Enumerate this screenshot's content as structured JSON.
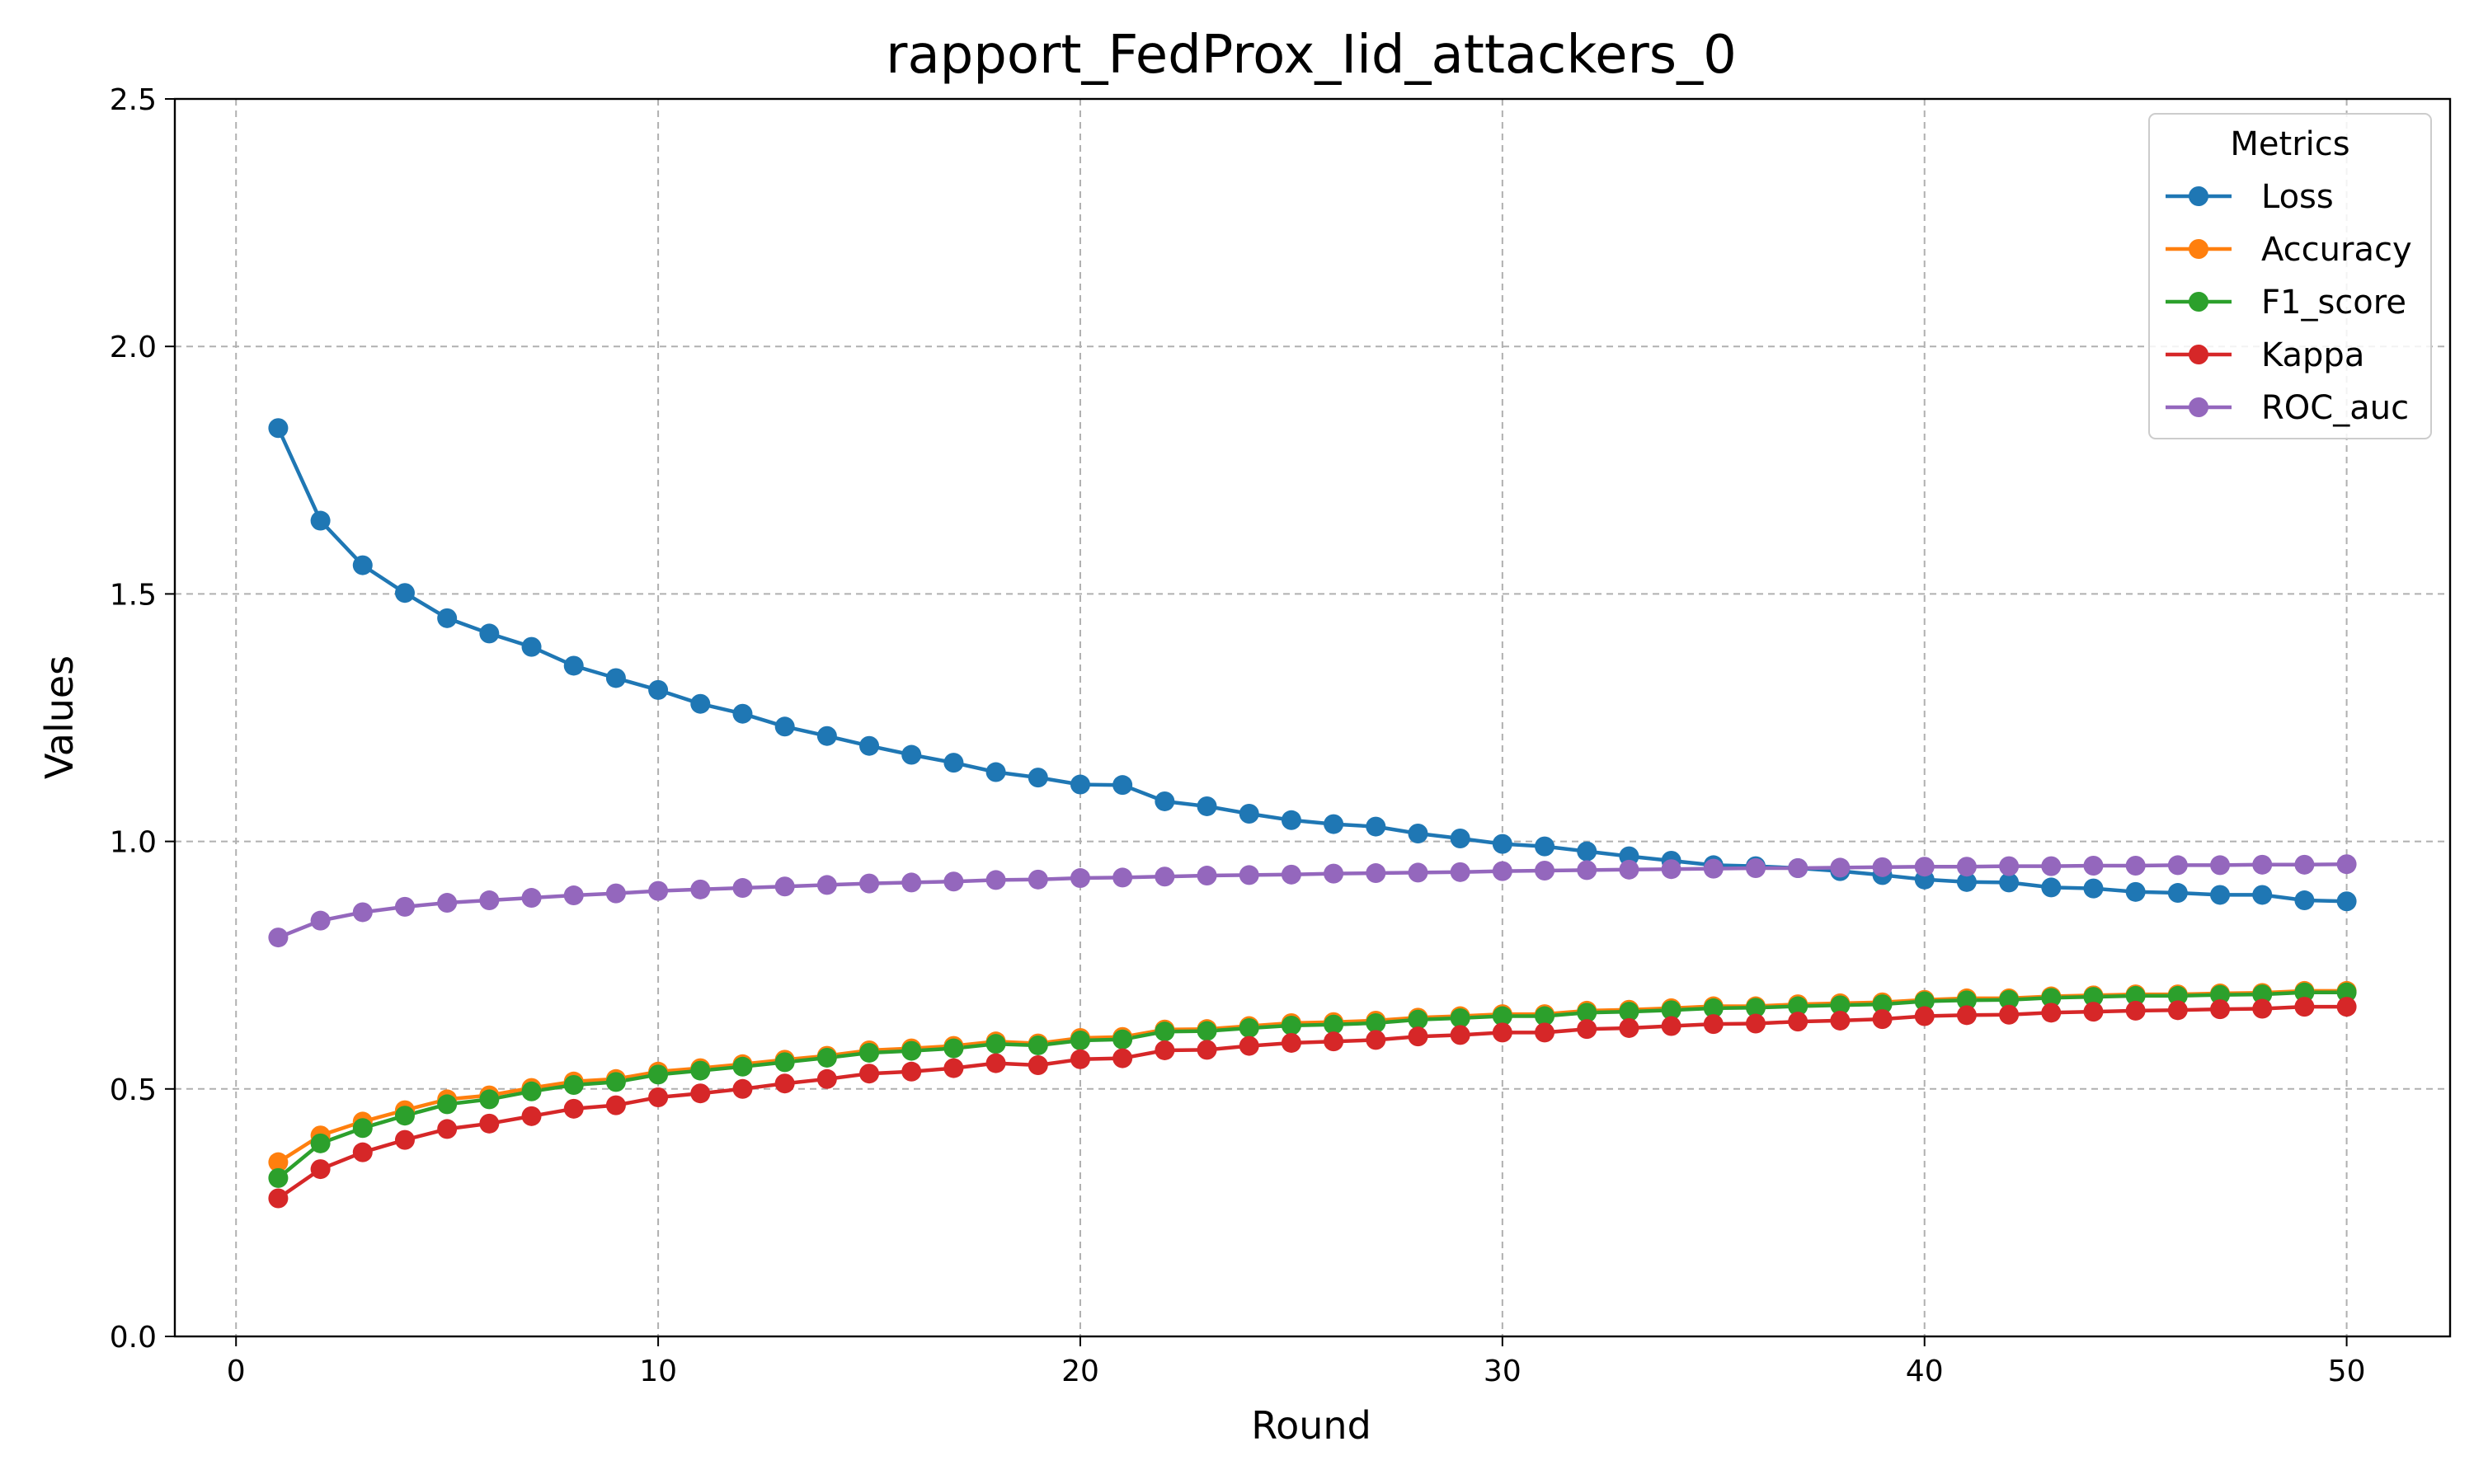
{
  "chart_data": {
    "type": "line",
    "title": "rapport_FedProx_Iid_attackers_0",
    "xlabel": "Round",
    "ylabel": "Values",
    "xlim": [
      -1.45,
      52.45
    ],
    "ylim": [
      0,
      2.5
    ],
    "xticks": [
      0,
      10,
      20,
      30,
      40,
      50
    ],
    "yticks": [
      0.0,
      0.5,
      1.0,
      1.5,
      2.0,
      2.5
    ],
    "xtick_labels": [
      "0",
      "10",
      "20",
      "30",
      "40",
      "50"
    ],
    "ytick_labels": [
      "0.0",
      "0.5",
      "1.0",
      "1.5",
      "2.0",
      "2.5"
    ],
    "grid": true,
    "legend": {
      "title": "Metrics",
      "placement": "top-right"
    },
    "x": [
      1,
      2,
      3,
      4,
      5,
      6,
      7,
      8,
      9,
      10,
      11,
      12,
      13,
      14,
      15,
      16,
      17,
      18,
      19,
      20,
      21,
      22,
      23,
      24,
      25,
      26,
      27,
      28,
      29,
      30,
      31,
      32,
      33,
      34,
      35,
      36,
      37,
      38,
      39,
      40,
      41,
      42,
      43,
      44,
      45,
      46,
      47,
      48,
      49,
      50
    ],
    "series": [
      {
        "name": "Loss",
        "color": "#1f77b4",
        "values": [
          1.835,
          1.648,
          1.558,
          1.502,
          1.451,
          1.42,
          1.393,
          1.355,
          1.33,
          1.306,
          1.278,
          1.258,
          1.232,
          1.213,
          1.193,
          1.175,
          1.159,
          1.14,
          1.129,
          1.115,
          1.114,
          1.081,
          1.071,
          1.056,
          1.043,
          1.035,
          1.03,
          1.016,
          1.006,
          0.995,
          0.99,
          0.98,
          0.97,
          0.961,
          0.952,
          0.95,
          0.946,
          0.94,
          0.932,
          0.923,
          0.918,
          0.917,
          0.907,
          0.905,
          0.898,
          0.896,
          0.892,
          0.892,
          0.881,
          0.879
        ]
      },
      {
        "name": "Accuracy",
        "color": "#ff7f0e",
        "values": [
          0.352,
          0.406,
          0.434,
          0.457,
          0.479,
          0.487,
          0.502,
          0.515,
          0.52,
          0.535,
          0.542,
          0.55,
          0.559,
          0.567,
          0.578,
          0.582,
          0.587,
          0.596,
          0.592,
          0.603,
          0.605,
          0.62,
          0.621,
          0.627,
          0.633,
          0.635,
          0.638,
          0.644,
          0.647,
          0.651,
          0.651,
          0.658,
          0.66,
          0.663,
          0.667,
          0.667,
          0.671,
          0.673,
          0.675,
          0.68,
          0.683,
          0.683,
          0.687,
          0.689,
          0.691,
          0.691,
          0.693,
          0.694,
          0.698,
          0.698
        ]
      },
      {
        "name": "F1_score",
        "color": "#2ca02c",
        "values": [
          0.32,
          0.39,
          0.421,
          0.446,
          0.469,
          0.479,
          0.495,
          0.508,
          0.514,
          0.529,
          0.537,
          0.545,
          0.554,
          0.563,
          0.573,
          0.577,
          0.582,
          0.591,
          0.588,
          0.598,
          0.6,
          0.616,
          0.617,
          0.623,
          0.628,
          0.63,
          0.633,
          0.64,
          0.643,
          0.647,
          0.647,
          0.654,
          0.656,
          0.659,
          0.663,
          0.664,
          0.667,
          0.669,
          0.671,
          0.677,
          0.679,
          0.68,
          0.684,
          0.686,
          0.688,
          0.688,
          0.69,
          0.691,
          0.695,
          0.695
        ]
      },
      {
        "name": "Kappa",
        "color": "#d62728",
        "values": [
          0.279,
          0.338,
          0.372,
          0.397,
          0.419,
          0.43,
          0.445,
          0.46,
          0.467,
          0.483,
          0.491,
          0.5,
          0.511,
          0.52,
          0.531,
          0.535,
          0.542,
          0.552,
          0.548,
          0.56,
          0.562,
          0.578,
          0.579,
          0.587,
          0.593,
          0.596,
          0.599,
          0.606,
          0.609,
          0.614,
          0.614,
          0.621,
          0.623,
          0.627,
          0.631,
          0.632,
          0.636,
          0.638,
          0.641,
          0.647,
          0.649,
          0.65,
          0.654,
          0.656,
          0.658,
          0.659,
          0.661,
          0.662,
          0.666,
          0.666
        ]
      },
      {
        "name": "ROC_auc",
        "color": "#9467bd",
        "values": [
          0.806,
          0.84,
          0.857,
          0.868,
          0.876,
          0.881,
          0.886,
          0.891,
          0.895,
          0.9,
          0.903,
          0.906,
          0.909,
          0.912,
          0.915,
          0.917,
          0.919,
          0.922,
          0.923,
          0.926,
          0.927,
          0.929,
          0.931,
          0.932,
          0.933,
          0.935,
          0.936,
          0.937,
          0.938,
          0.94,
          0.941,
          0.942,
          0.943,
          0.944,
          0.945,
          0.946,
          0.946,
          0.947,
          0.948,
          0.949,
          0.949,
          0.95,
          0.95,
          0.951,
          0.951,
          0.952,
          0.952,
          0.953,
          0.953,
          0.954
        ]
      }
    ]
  }
}
